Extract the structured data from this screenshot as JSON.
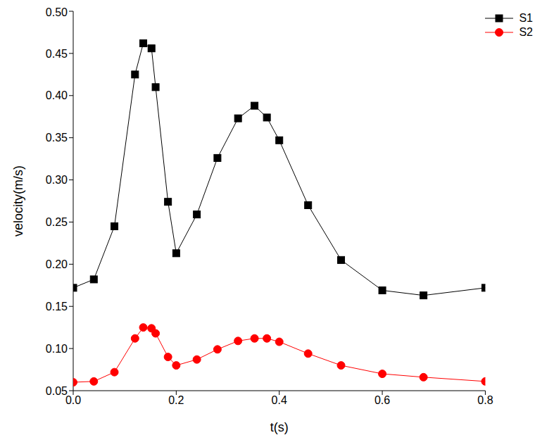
{
  "chart_data": {
    "type": "line",
    "x_label": "t(s)",
    "y_label": "velocity(m/s)",
    "x": [
      0,
      0.04,
      0.08,
      0.12,
      0.136,
      0.152,
      0.16,
      0.184,
      0.2,
      0.24,
      0.28,
      0.32,
      0.352,
      0.376,
      0.4,
      0.456,
      0.52,
      0.6,
      0.68,
      0.8
    ],
    "series": [
      {
        "name": "S1",
        "color": "#000000",
        "marker": "square",
        "values": [
          0.172,
          0.182,
          0.245,
          0.425,
          0.462,
          0.456,
          0.41,
          0.274,
          0.213,
          0.259,
          0.326,
          0.373,
          0.388,
          0.374,
          0.347,
          0.27,
          0.205,
          0.169,
          0.163,
          0.172
        ]
      },
      {
        "name": "S2",
        "color": "#ff0000",
        "marker": "circle",
        "values": [
          0.06,
          0.061,
          0.072,
          0.112,
          0.125,
          0.124,
          0.118,
          0.09,
          0.08,
          0.087,
          0.099,
          0.109,
          0.112,
          0.112,
          0.108,
          0.094,
          0.08,
          0.07,
          0.066,
          0.061
        ]
      }
    ],
    "xlim": [
      0,
      0.8
    ],
    "xticks": [
      {
        "value": 0,
        "label": "0.0"
      },
      0.2,
      0.4,
      0.6,
      0.8
    ],
    "ylim": [
      0.05,
      0.5
    ],
    "yticks": [
      0.05,
      {
        "value": 0.1,
        "label": "0.10"
      },
      0.15,
      {
        "value": 0.2,
        "label": "0.20"
      },
      0.25,
      {
        "value": 0.3,
        "label": "0.30"
      },
      0.35,
      {
        "value": 0.4,
        "label": "0.40"
      },
      0.45,
      {
        "value": 0.5,
        "label": "0.50"
      }
    ],
    "grid": false,
    "legend": "top-right"
  }
}
